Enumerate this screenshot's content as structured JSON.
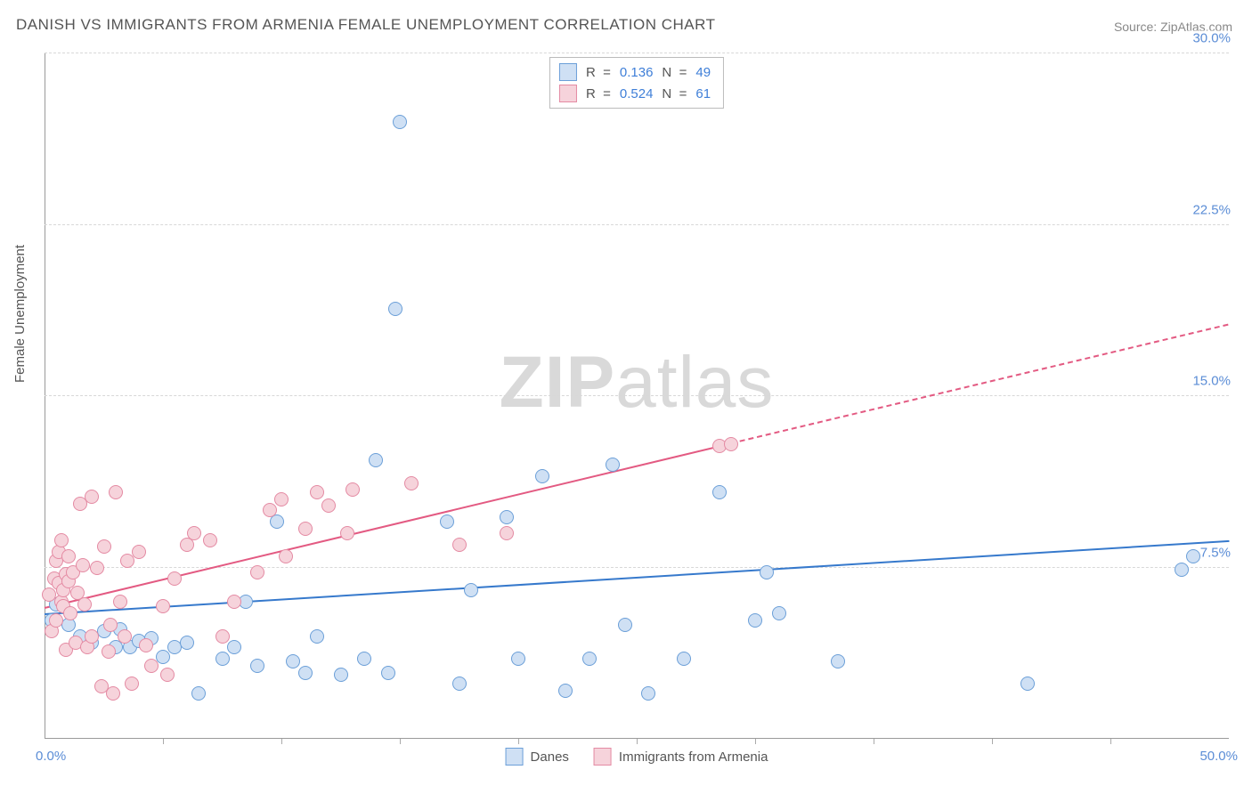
{
  "title": "DANISH VS IMMIGRANTS FROM ARMENIA FEMALE UNEMPLOYMENT CORRELATION CHART",
  "source_label": "Source: ",
  "source_value": "ZipAtlas.com",
  "ylabel": "Female Unemployment",
  "watermark_bold": "ZIP",
  "watermark_light": "atlas",
  "chart": {
    "type": "scatter",
    "x_min": 0.0,
    "x_max": 50.0,
    "y_min": 0.0,
    "y_max": 30.0,
    "x_tick_step": 5.0,
    "y_ticks": [
      7.5,
      15.0,
      22.5,
      30.0
    ],
    "y_tick_labels": [
      "7.5%",
      "15.0%",
      "22.5%",
      "30.0%"
    ],
    "x_label_min": "0.0%",
    "x_label_max": "50.0%",
    "background_color": "#ffffff",
    "grid_color": "#d8d8d8",
    "axis_color": "#9a9a9a",
    "tick_label_color": "#5b8dd6",
    "series": [
      {
        "id": "danes",
        "label": "Danes",
        "marker_fill": "#cfe0f4",
        "marker_stroke": "#6b9fd8",
        "line_color": "#3679cc",
        "r_value": "0.136",
        "n_value": "49",
        "trend_x1": 0.0,
        "trend_y1": 5.4,
        "trend_x2": 50.0,
        "trend_y2": 8.6,
        "trend_dash_from": 50.0,
        "points": [
          [
            0.3,
            5.2
          ],
          [
            0.5,
            5.9
          ],
          [
            1.0,
            5.0
          ],
          [
            1.5,
            4.5
          ],
          [
            2.0,
            4.2
          ],
          [
            2.5,
            4.7
          ],
          [
            3.0,
            4.0
          ],
          [
            3.2,
            4.8
          ],
          [
            3.6,
            4.0
          ],
          [
            4.0,
            4.3
          ],
          [
            4.5,
            4.4
          ],
          [
            5.0,
            3.6
          ],
          [
            5.5,
            4.0
          ],
          [
            6.0,
            4.2
          ],
          [
            6.5,
            2.0
          ],
          [
            7.5,
            3.5
          ],
          [
            8.0,
            4.0
          ],
          [
            8.5,
            6.0
          ],
          [
            9.0,
            3.2
          ],
          [
            9.8,
            9.5
          ],
          [
            10.5,
            3.4
          ],
          [
            11.0,
            2.9
          ],
          [
            11.5,
            4.5
          ],
          [
            12.5,
            2.8
          ],
          [
            13.5,
            3.5
          ],
          [
            14.0,
            12.2
          ],
          [
            14.5,
            2.9
          ],
          [
            14.8,
            18.8
          ],
          [
            15.0,
            27.0
          ],
          [
            17.0,
            9.5
          ],
          [
            17.5,
            2.4
          ],
          [
            18.0,
            6.5
          ],
          [
            19.5,
            9.7
          ],
          [
            20.0,
            3.5
          ],
          [
            21.0,
            11.5
          ],
          [
            22.0,
            2.1
          ],
          [
            23.0,
            3.5
          ],
          [
            24.0,
            12.0
          ],
          [
            24.5,
            5.0
          ],
          [
            25.5,
            2.0
          ],
          [
            27.0,
            3.5
          ],
          [
            28.5,
            10.8
          ],
          [
            30.0,
            5.2
          ],
          [
            30.5,
            7.3
          ],
          [
            31.0,
            5.5
          ],
          [
            33.5,
            3.4
          ],
          [
            41.5,
            2.4
          ],
          [
            48.0,
            7.4
          ],
          [
            48.5,
            8.0
          ]
        ]
      },
      {
        "id": "armenia",
        "label": "Immigrants from Armenia",
        "marker_fill": "#f6d3db",
        "marker_stroke": "#e48aa3",
        "line_color": "#e35a82",
        "r_value": "0.524",
        "n_value": "61",
        "trend_x1": 0.0,
        "trend_y1": 5.7,
        "trend_x2": 29.0,
        "trend_y2": 12.9,
        "trend_dash_from": 29.0,
        "trend_dash_x2": 50.0,
        "trend_dash_y2": 18.1,
        "points": [
          [
            0.2,
            6.3
          ],
          [
            0.3,
            4.7
          ],
          [
            0.4,
            7.0
          ],
          [
            0.5,
            7.8
          ],
          [
            0.5,
            5.2
          ],
          [
            0.6,
            8.2
          ],
          [
            0.6,
            6.8
          ],
          [
            0.7,
            6.0
          ],
          [
            0.7,
            8.7
          ],
          [
            0.8,
            6.5
          ],
          [
            0.8,
            5.8
          ],
          [
            0.9,
            7.2
          ],
          [
            0.9,
            3.9
          ],
          [
            1.0,
            6.9
          ],
          [
            1.0,
            8.0
          ],
          [
            1.1,
            5.5
          ],
          [
            1.2,
            7.3
          ],
          [
            1.3,
            4.2
          ],
          [
            1.4,
            6.4
          ],
          [
            1.5,
            10.3
          ],
          [
            1.6,
            7.6
          ],
          [
            1.7,
            5.9
          ],
          [
            1.8,
            4.0
          ],
          [
            2.0,
            4.5
          ],
          [
            2.0,
            10.6
          ],
          [
            2.2,
            7.5
          ],
          [
            2.4,
            2.3
          ],
          [
            2.5,
            8.4
          ],
          [
            2.7,
            3.8
          ],
          [
            2.8,
            5.0
          ],
          [
            2.9,
            2.0
          ],
          [
            3.0,
            10.8
          ],
          [
            3.2,
            6.0
          ],
          [
            3.4,
            4.5
          ],
          [
            3.5,
            7.8
          ],
          [
            3.7,
            2.4
          ],
          [
            4.0,
            8.2
          ],
          [
            4.3,
            4.1
          ],
          [
            4.5,
            3.2
          ],
          [
            5.0,
            5.8
          ],
          [
            5.2,
            2.8
          ],
          [
            5.5,
            7.0
          ],
          [
            6.0,
            8.5
          ],
          [
            6.3,
            9.0
          ],
          [
            7.0,
            8.7
          ],
          [
            7.5,
            4.5
          ],
          [
            8.0,
            6.0
          ],
          [
            9.0,
            7.3
          ],
          [
            9.5,
            10.0
          ],
          [
            10.0,
            10.5
          ],
          [
            10.2,
            8.0
          ],
          [
            11.0,
            9.2
          ],
          [
            11.5,
            10.8
          ],
          [
            12.0,
            10.2
          ],
          [
            12.8,
            9.0
          ],
          [
            13.0,
            10.9
          ],
          [
            15.5,
            11.2
          ],
          [
            17.5,
            8.5
          ],
          [
            19.5,
            9.0
          ],
          [
            28.5,
            12.8
          ],
          [
            29.0,
            12.9
          ]
        ]
      }
    ],
    "legend_top_r_label": "R  =",
    "legend_top_n_label": "N  ="
  }
}
